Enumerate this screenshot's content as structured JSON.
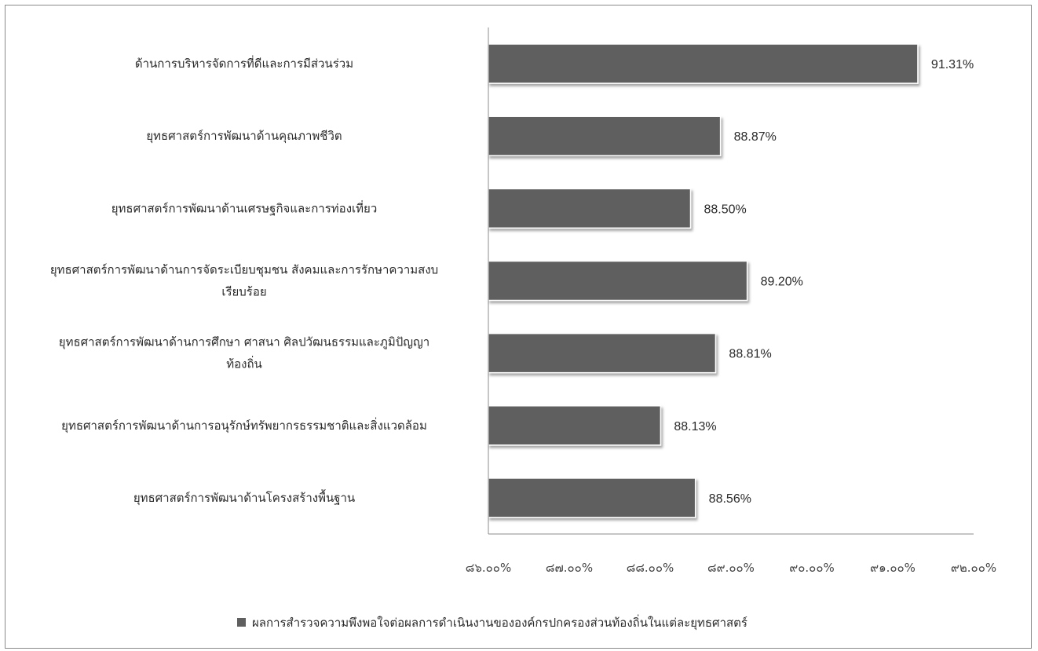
{
  "chart_data": {
    "type": "bar",
    "orientation": "horizontal",
    "categories": [
      [
        "ด้านการบริหารจัดการที่ดีและการมีส่วนร่วม"
      ],
      [
        "ยุทธศาสตร์การพัฒนาด้านคุณภาพชีวิต"
      ],
      [
        "ยุทธศาสตร์การพัฒนาด้านเศรษฐกิจและการท่องเที่ยว"
      ],
      [
        "ยุทธศาสตร์การพัฒนาด้านการจัดระเบียบชุมชน สังคมและการรักษาความสงบ",
        "เรียบร้อย"
      ],
      [
        "ยุทธศาสตร์การพัฒนาด้านการศึกษา ศาสนา ศิลปวัฒนธรรมและภูมิปัญญา",
        "ท้องถิ่น"
      ],
      [
        "ยุทธศาสตร์การพัฒนาด้านการอนุรักษ์ทรัพยากรธรรมชาติและสิ่งแวดล้อม"
      ],
      [
        "ยุทธศาสตร์การพัฒนาด้านโครงสร้างพื้นฐาน"
      ]
    ],
    "series": [
      {
        "name": "ผลการสำรวจความพึงพอใจต่อผลการดำเนินงานขององค์กรปกครองส่วนท้องถิ่นในแต่ละยุทธศาสตร์",
        "values": [
          91.31,
          88.87,
          88.5,
          89.2,
          88.81,
          88.13,
          88.56
        ],
        "value_labels": [
          "91.31%",
          "88.87%",
          "88.50%",
          "89.20%",
          "88.81%",
          "88.13%",
          "88.56%"
        ],
        "color": "#5f5f5f"
      }
    ],
    "xlim": [
      86,
      92
    ],
    "x_ticks": [
      86,
      87,
      88,
      89,
      90,
      91,
      92
    ],
    "x_tick_labels": [
      "๘๖.๐๐%",
      "๘๗.๐๐%",
      "๘๘.๐๐%",
      "๘๙.๐๐%",
      "๙๐.๐๐%",
      "๙๑.๐๐%",
      "๙๒.๐๐%"
    ],
    "grid": false,
    "legend_position": "bottom"
  }
}
